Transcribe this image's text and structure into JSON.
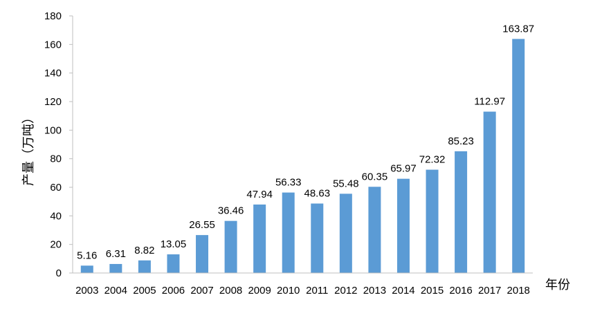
{
  "chart_data": {
    "type": "bar",
    "title": "",
    "xlabel": "年份",
    "ylabel": "产量（万吨）",
    "categories": [
      "2003",
      "2004",
      "2005",
      "2006",
      "2007",
      "2008",
      "2009",
      "2010",
      "2011",
      "2012",
      "2013",
      "2014",
      "2015",
      "2016",
      "2017",
      "2018"
    ],
    "values": [
      5.16,
      6.31,
      8.82,
      13.05,
      26.55,
      36.46,
      47.94,
      56.33,
      48.63,
      55.48,
      60.35,
      65.97,
      72.32,
      85.23,
      112.97,
      163.87
    ],
    "data_labels": [
      "5.16",
      "6.31",
      "8.82",
      "13.05",
      "26.55",
      "36.46",
      "47.94",
      "56.33",
      "48.63",
      "55.48",
      "60.35",
      "65.97",
      "72.32",
      "85.23",
      "112.97",
      "163.87"
    ],
    "ylim": [
      0,
      180
    ],
    "yticks": [
      "0",
      "20",
      "40",
      "60",
      "80",
      "100",
      "120",
      "140",
      "160",
      "180"
    ],
    "grid": false,
    "legend": "none",
    "bar_color": "#5b9bd5",
    "axis_color": "#bfbfbf"
  }
}
